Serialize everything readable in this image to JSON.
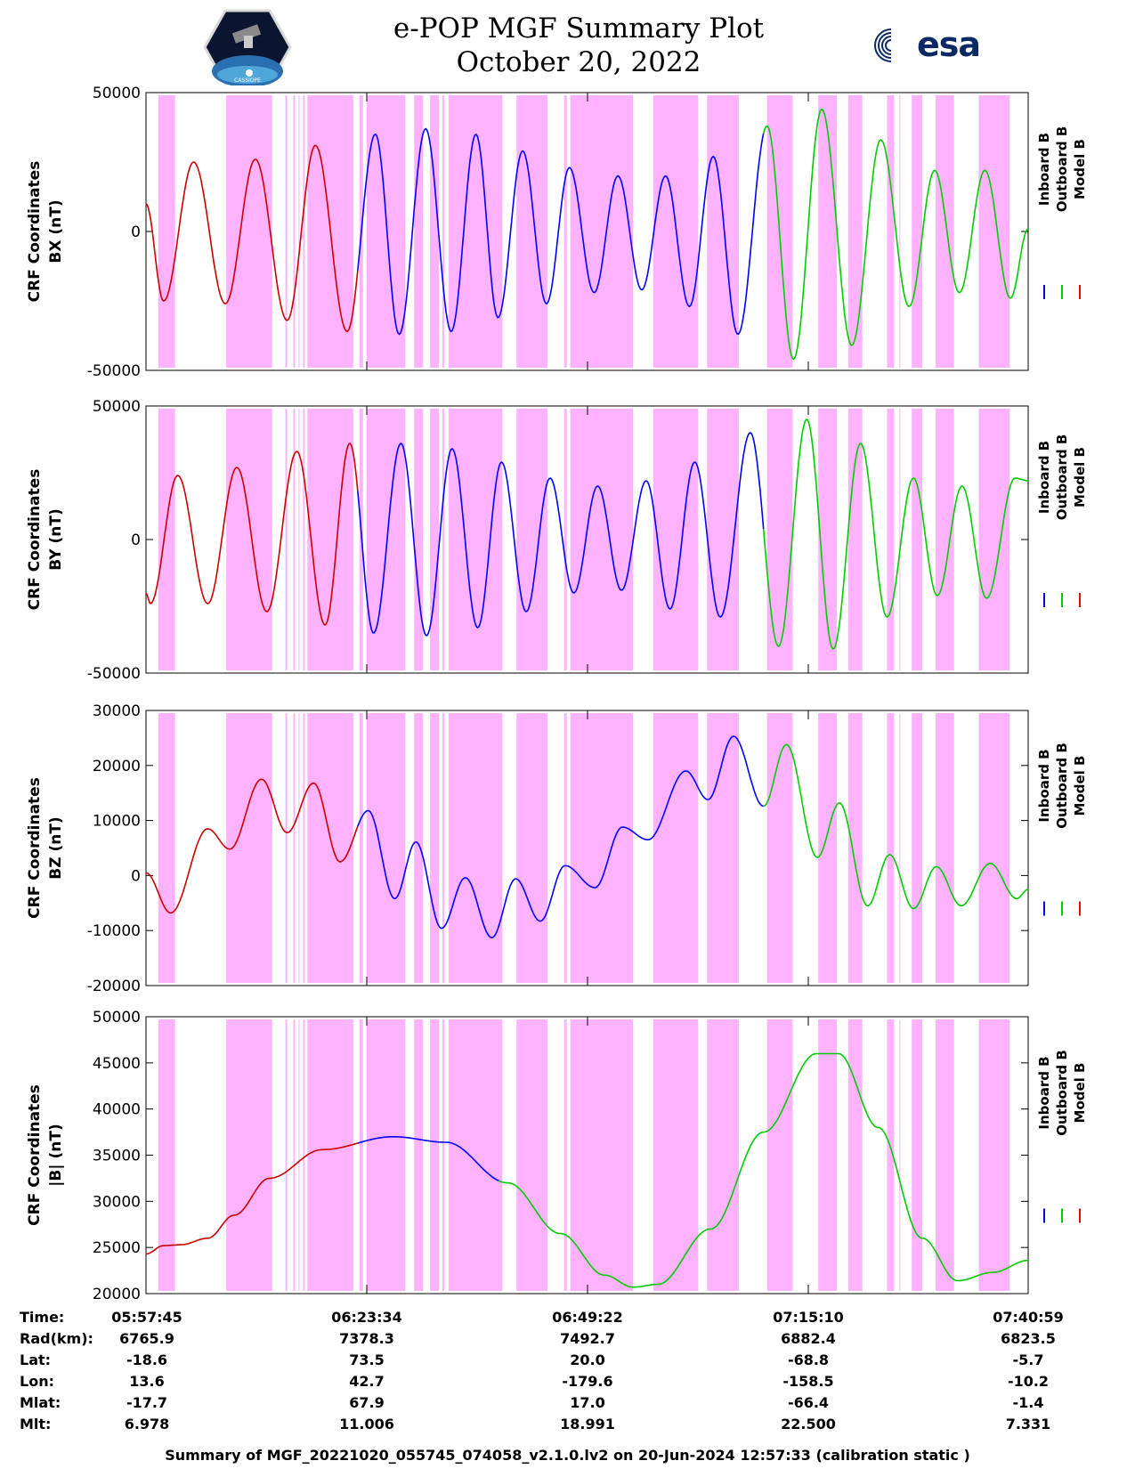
{
  "header": {
    "title_line1": "e-POP MGF Summary Plot",
    "title_line2": "October 20, 2022",
    "left_logo_label": "CASSIOPE",
    "right_logo_label": "esa"
  },
  "legend": {
    "entries": [
      {
        "name": "Inboard B",
        "color": "#0000ff"
      },
      {
        "name": "Outboard B",
        "color": "#00cc00"
      },
      {
        "name": "Model B",
        "color": "#ff0000"
      }
    ]
  },
  "colors": {
    "shade": "#ffb3ff",
    "inboard": "#0000ff",
    "outboard": "#00cc00",
    "model": "#cc0000"
  },
  "chart_data": [
    {
      "type": "line",
      "ylabel_line1": "CRF Coordinates",
      "ylabel_line2": "BX (nT)",
      "ylim": [
        -50000,
        50000
      ],
      "yticks": [
        "50000",
        "0",
        "-50000"
      ],
      "series_names": [
        "Inboard B",
        "Outboard B",
        "Model B"
      ],
      "extrema": [
        [
          0.0,
          10000
        ],
        [
          0.02,
          -25000
        ],
        [
          0.054,
          25000
        ],
        [
          0.09,
          -26000
        ],
        [
          0.124,
          26000
        ],
        [
          0.16,
          -32000
        ],
        [
          0.192,
          31000
        ],
        [
          0.228,
          -36000
        ],
        [
          0.26,
          35000
        ],
        [
          0.287,
          -37000
        ],
        [
          0.317,
          37000
        ],
        [
          0.346,
          -36000
        ],
        [
          0.374,
          35000
        ],
        [
          0.399,
          -31000
        ],
        [
          0.427,
          29000
        ],
        [
          0.454,
          -26000
        ],
        [
          0.48,
          23000
        ],
        [
          0.508,
          -22000
        ],
        [
          0.535,
          20000
        ],
        [
          0.562,
          -21000
        ],
        [
          0.589,
          20000
        ],
        [
          0.616,
          -27000
        ],
        [
          0.643,
          27000
        ],
        [
          0.671,
          -37000
        ],
        [
          0.704,
          38000
        ],
        [
          0.734,
          -46000
        ],
        [
          0.766,
          44000
        ],
        [
          0.8,
          -41000
        ],
        [
          0.833,
          33000
        ],
        [
          0.865,
          -27000
        ],
        [
          0.894,
          22000
        ],
        [
          0.922,
          -22000
        ],
        [
          0.951,
          22000
        ],
        [
          0.98,
          -24000
        ],
        [
          1.0,
          1000
        ]
      ]
    },
    {
      "type": "line",
      "ylabel_line1": "CRF Coordinates",
      "ylabel_line2": "BY (nT)",
      "ylim": [
        -50000,
        50000
      ],
      "yticks": [
        "50000",
        "0",
        "-50000"
      ],
      "series_names": [
        "Inboard B",
        "Outboard B",
        "Model B"
      ],
      "extrema": [
        [
          0.0,
          -20000
        ],
        [
          0.005,
          -24000
        ],
        [
          0.036,
          24000
        ],
        [
          0.07,
          -24000
        ],
        [
          0.103,
          27000
        ],
        [
          0.137,
          -27000
        ],
        [
          0.171,
          33000
        ],
        [
          0.203,
          -32000
        ],
        [
          0.231,
          36000
        ],
        [
          0.258,
          -35000
        ],
        [
          0.289,
          36000
        ],
        [
          0.318,
          -36000
        ],
        [
          0.347,
          34000
        ],
        [
          0.376,
          -33000
        ],
        [
          0.403,
          29000
        ],
        [
          0.431,
          -27000
        ],
        [
          0.458,
          23000
        ],
        [
          0.485,
          -20000
        ],
        [
          0.512,
          20000
        ],
        [
          0.539,
          -19000
        ],
        [
          0.567,
          22000
        ],
        [
          0.594,
          -26000
        ],
        [
          0.622,
          29000
        ],
        [
          0.651,
          -29000
        ],
        [
          0.685,
          40000
        ],
        [
          0.717,
          -40000
        ],
        [
          0.749,
          45000
        ],
        [
          0.779,
          -41000
        ],
        [
          0.81,
          36000
        ],
        [
          0.84,
          -29000
        ],
        [
          0.87,
          23000
        ],
        [
          0.897,
          -21000
        ],
        [
          0.925,
          20000
        ],
        [
          0.953,
          -22000
        ],
        [
          0.985,
          23000
        ],
        [
          1.0,
          22000
        ]
      ]
    },
    {
      "type": "line",
      "ylabel_line1": "CRF Coordinates",
      "ylabel_line2": "BZ (nT)",
      "ylim": [
        -20000,
        30000
      ],
      "yticks": [
        "30000",
        "20000",
        "10000",
        "0",
        "-10000",
        "-20000"
      ],
      "series_names": [
        "Inboard B",
        "Outboard B",
        "Model B"
      ],
      "extrema": [
        [
          0.0,
          500
        ],
        [
          0.028,
          -6800
        ],
        [
          0.07,
          8500
        ],
        [
          0.095,
          4800
        ],
        [
          0.131,
          17500
        ],
        [
          0.16,
          7800
        ],
        [
          0.19,
          16800
        ],
        [
          0.22,
          2500
        ],
        [
          0.252,
          11800
        ],
        [
          0.282,
          -4200
        ],
        [
          0.306,
          6100
        ],
        [
          0.335,
          -9600
        ],
        [
          0.362,
          -400
        ],
        [
          0.392,
          -11300
        ],
        [
          0.419,
          -600
        ],
        [
          0.447,
          -8300
        ],
        [
          0.475,
          1800
        ],
        [
          0.509,
          -2200
        ],
        [
          0.54,
          8800
        ],
        [
          0.569,
          6500
        ],
        [
          0.612,
          19000
        ],
        [
          0.637,
          13800
        ],
        [
          0.666,
          25300
        ],
        [
          0.7,
          12600
        ],
        [
          0.726,
          23800
        ],
        [
          0.761,
          3300
        ],
        [
          0.786,
          13200
        ],
        [
          0.818,
          -5500
        ],
        [
          0.843,
          3800
        ],
        [
          0.87,
          -6000
        ],
        [
          0.896,
          1600
        ],
        [
          0.924,
          -5500
        ],
        [
          0.957,
          2200
        ],
        [
          0.987,
          -4200
        ],
        [
          1.0,
          -2500
        ]
      ]
    },
    {
      "type": "line",
      "ylabel_line1": "CRF Coordinates",
      "ylabel_line2": "|B| (nT)",
      "ylim": [
        20000,
        50000
      ],
      "yticks": [
        "50000",
        "45000",
        "40000",
        "35000",
        "30000",
        "25000",
        "20000"
      ],
      "series_names": [
        "Inboard B",
        "Outboard B",
        "Model B"
      ],
      "extrema": [
        [
          0.0,
          24300
        ],
        [
          0.02,
          25200
        ],
        [
          0.04,
          25300
        ],
        [
          0.07,
          26000
        ],
        [
          0.1,
          28500
        ],
        [
          0.14,
          32500
        ],
        [
          0.2,
          35600
        ],
        [
          0.28,
          37000
        ],
        [
          0.34,
          36400
        ],
        [
          0.41,
          32000
        ],
        [
          0.47,
          26500
        ],
        [
          0.52,
          22000
        ],
        [
          0.552,
          20700
        ],
        [
          0.58,
          21000
        ],
        [
          0.64,
          27000
        ],
        [
          0.7,
          37500
        ],
        [
          0.76,
          46000
        ],
        [
          0.785,
          46000
        ],
        [
          0.83,
          38000
        ],
        [
          0.88,
          26000
        ],
        [
          0.92,
          21400
        ],
        [
          0.96,
          22300
        ],
        [
          1.0,
          23600
        ]
      ]
    }
  ],
  "segments": [
    {
      "to": 0.24,
      "color": "model"
    },
    {
      "to": 0.41,
      "color": "inboard"
    },
    {
      "to": 0.7,
      "color": "inboard"
    },
    {
      "to": 1.0,
      "color": "outboard"
    }
  ],
  "segments_b": [
    {
      "to": 0.24,
      "color": "model"
    },
    {
      "to": 0.4,
      "color": "inboard"
    },
    {
      "to": 1.0,
      "color": "outboard"
    }
  ],
  "shaded_intervals": [
    [
      0.014,
      0.033
    ],
    [
      0.091,
      0.143
    ],
    [
      0.158,
      0.16
    ],
    [
      0.167,
      0.169
    ],
    [
      0.173,
      0.174
    ],
    [
      0.178,
      0.18
    ],
    [
      0.183,
      0.235
    ],
    [
      0.242,
      0.246
    ],
    [
      0.25,
      0.294
    ],
    [
      0.304,
      0.314
    ],
    [
      0.322,
      0.332
    ],
    [
      0.336,
      0.338
    ],
    [
      0.343,
      0.404
    ],
    [
      0.42,
      0.455
    ],
    [
      0.474,
      0.477
    ],
    [
      0.481,
      0.552
    ],
    [
      0.575,
      0.626
    ],
    [
      0.636,
      0.672
    ],
    [
      0.704,
      0.733
    ],
    [
      0.762,
      0.783
    ],
    [
      0.796,
      0.812
    ],
    [
      0.84,
      0.848
    ],
    [
      0.854,
      0.855
    ],
    [
      0.868,
      0.88
    ],
    [
      0.895,
      0.916
    ],
    [
      0.944,
      0.979
    ]
  ],
  "time_table": {
    "labels": [
      "Time:",
      "Rad(km):",
      "Lat:",
      "Lon:",
      "Mlat:",
      "Mlt:"
    ],
    "columns": [
      {
        "time": "05:57:45",
        "rad": "6765.9",
        "lat": "-18.6",
        "lon": "13.6",
        "mlat": "-17.7",
        "mlt": "6.978"
      },
      {
        "time": "06:23:34",
        "rad": "7378.3",
        "lat": "73.5",
        "lon": "42.7",
        "mlat": "67.9",
        "mlt": "11.006"
      },
      {
        "time": "06:49:22",
        "rad": "7492.7",
        "lat": "20.0",
        "lon": "-179.6",
        "mlat": "17.0",
        "mlt": "18.991"
      },
      {
        "time": "07:15:10",
        "rad": "6882.4",
        "lat": "-68.8",
        "lon": "-158.5",
        "mlat": "-66.4",
        "mlt": "22.500"
      },
      {
        "time": "07:40:59",
        "rad": "6823.5",
        "lat": "-5.7",
        "lon": "-10.2",
        "mlat": "-1.4",
        "mlt": "7.331"
      }
    ]
  },
  "footer": "Summary of MGF_20221020_055745_074058_v2.1.0.lv2 on 20-Jun-2024 12:57:33 (calibration static )"
}
